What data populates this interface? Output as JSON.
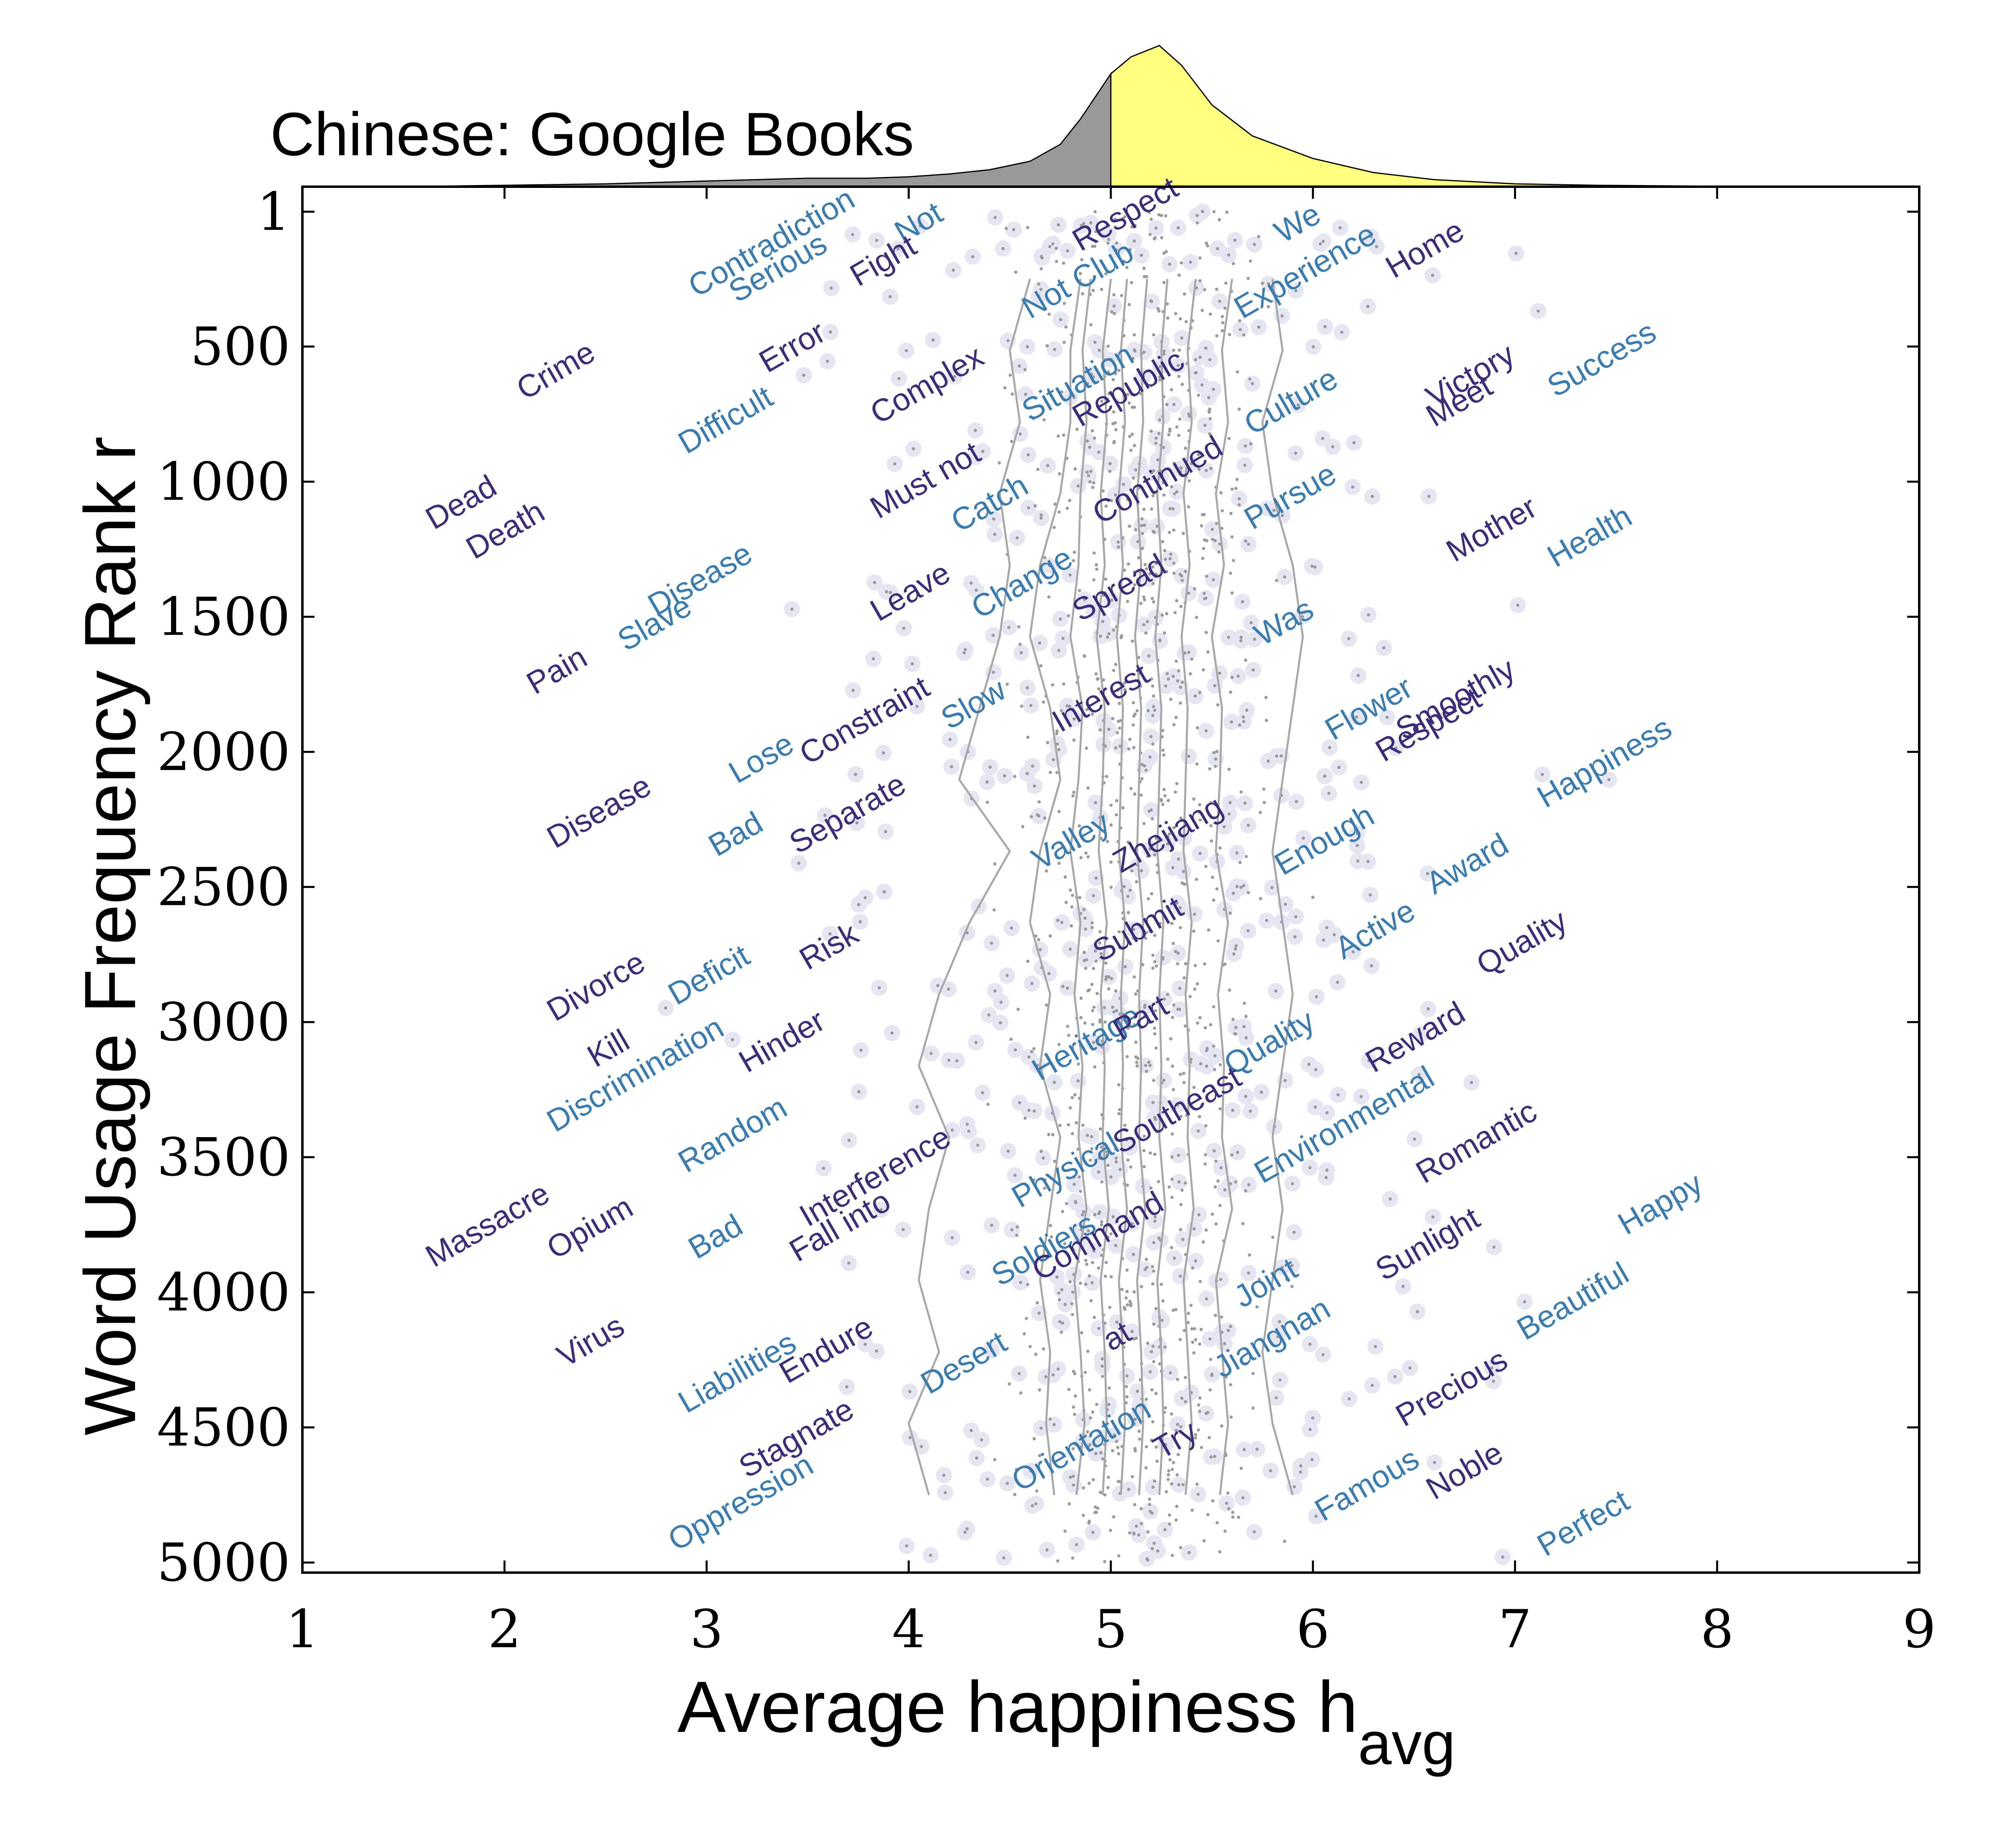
{
  "chart_data": {
    "type": "scatter",
    "title": "Chinese: Google Books",
    "xlabel": "Average happiness h",
    "xlabel_subscript": "avg",
    "ylabel": "Word Usage Frequency Rank r",
    "xlim": [
      1,
      9
    ],
    "ylim": [
      1,
      5000
    ],
    "y_inverted": true,
    "x_ticks": [
      1,
      2,
      3,
      4,
      5,
      6,
      7,
      8,
      9
    ],
    "y_ticks": [
      {
        "value": 1,
        "label": "1"
      },
      {
        "value": 500,
        "label": "500"
      },
      {
        "value": 1000,
        "label": "1000"
      },
      {
        "value": 1500,
        "label": "1500"
      },
      {
        "value": 2000,
        "label": "2000"
      },
      {
        "value": 2500,
        "label": "2500"
      },
      {
        "value": 3000,
        "label": "3000"
      },
      {
        "value": 3500,
        "label": "3500"
      },
      {
        "value": 4000,
        "label": "4000"
      },
      {
        "value": 4500,
        "label": "4500"
      },
      {
        "value": 5000,
        "label": "5000"
      }
    ],
    "grid": false,
    "colors": {
      "word_dark": "#3b2d7a",
      "word_light": "#3a7cb0",
      "point": "#9a9a9a",
      "point_halo": "#e6e6f3",
      "quantile_line": "#a8a8a8",
      "density_below": "#999999",
      "density_above": "#ffff80"
    },
    "density": {
      "split_at": 5,
      "x": [
        1.5,
        2.0,
        2.5,
        3.0,
        3.5,
        3.8,
        4.0,
        4.2,
        4.4,
        4.6,
        4.75,
        4.85,
        5.0,
        5.1,
        5.24,
        5.35,
        5.5,
        5.7,
        6.0,
        6.3,
        6.6,
        7.0,
        7.4,
        8.0,
        8.5
      ],
      "y": [
        0.0,
        0.01,
        0.02,
        0.04,
        0.06,
        0.06,
        0.07,
        0.09,
        0.12,
        0.18,
        0.3,
        0.48,
        0.8,
        0.92,
        1.0,
        0.86,
        0.58,
        0.36,
        0.2,
        0.1,
        0.05,
        0.02,
        0.01,
        0.003,
        0.0
      ]
    },
    "quantile_lines": [
      {
        "x": [
          4.6,
          4.5,
          4.55,
          4.45,
          4.5,
          4.45,
          4.35,
          4.25,
          4.5,
          4.3,
          4.15,
          4.05,
          4.2,
          4.1,
          4.05,
          4.15,
          4.0,
          4.1
        ]
      },
      {
        "x": [
          4.85,
          4.8,
          4.8,
          4.75,
          4.65,
          4.6,
          4.7,
          4.75,
          4.65,
          4.6,
          4.7,
          4.65,
          4.75,
          4.7,
          4.65,
          4.7,
          4.68,
          4.72
        ]
      },
      {
        "x": [
          4.9,
          4.86,
          4.88,
          4.85,
          4.84,
          4.8,
          4.86,
          4.84,
          4.8,
          4.85,
          4.82,
          4.86,
          4.84,
          4.88,
          4.82,
          4.85,
          4.87,
          4.83
        ]
      },
      {
        "x": [
          5.0,
          4.96,
          4.98,
          4.95,
          4.97,
          4.93,
          4.97,
          4.96,
          4.94,
          4.98,
          4.95,
          4.97,
          4.96,
          4.99,
          4.95,
          4.97,
          4.98,
          4.96
        ]
      },
      {
        "x": [
          5.08,
          5.05,
          5.07,
          5.04,
          5.06,
          5.03,
          5.06,
          5.05,
          5.04,
          5.07,
          5.05,
          5.06,
          5.05,
          5.08,
          5.04,
          5.06,
          5.07,
          5.05
        ]
      },
      {
        "x": [
          5.18,
          5.15,
          5.16,
          5.13,
          5.15,
          5.12,
          5.15,
          5.14,
          5.13,
          5.16,
          5.14,
          5.15,
          5.14,
          5.17,
          5.13,
          5.15,
          5.16,
          5.14
        ]
      },
      {
        "x": [
          5.28,
          5.25,
          5.26,
          5.23,
          5.25,
          5.22,
          5.25,
          5.24,
          5.23,
          5.26,
          5.24,
          5.25,
          5.24,
          5.27,
          5.23,
          5.25,
          5.26,
          5.24
        ]
      },
      {
        "x": [
          5.42,
          5.38,
          5.4,
          5.36,
          5.39,
          5.35,
          5.38,
          5.37,
          5.36,
          5.4,
          5.37,
          5.39,
          5.38,
          5.41,
          5.36,
          5.38,
          5.4,
          5.37
        ]
      },
      {
        "x": [
          5.6,
          5.55,
          5.58,
          5.52,
          5.56,
          5.5,
          5.55,
          5.54,
          5.52,
          5.58,
          5.53,
          5.56,
          5.55,
          5.6,
          5.52,
          5.55,
          5.58,
          5.54
        ]
      },
      {
        "x": [
          5.8,
          5.85,
          5.75,
          5.8,
          5.9,
          5.95,
          5.9,
          5.85,
          5.8,
          5.85,
          5.9,
          5.85,
          5.8,
          5.85,
          5.8,
          5.75,
          5.8,
          5.9
        ]
      }
    ],
    "words": [
      {
        "text": "Not",
        "h": 3.97,
        "r": 120,
        "tone": "light"
      },
      {
        "text": "Respect",
        "h": 4.85,
        "r": 150,
        "tone": "dark"
      },
      {
        "text": "We",
        "h": 5.85,
        "r": 120,
        "tone": "light"
      },
      {
        "text": "Contradiction",
        "h": 2.95,
        "r": 320,
        "tone": "light"
      },
      {
        "text": "Serious",
        "h": 3.15,
        "r": 340,
        "tone": "light"
      },
      {
        "text": "Fight",
        "h": 3.75,
        "r": 280,
        "tone": "dark"
      },
      {
        "text": "Home",
        "h": 6.4,
        "r": 250,
        "tone": "dark"
      },
      {
        "text": "Not Club",
        "h": 4.6,
        "r": 400,
        "tone": "light"
      },
      {
        "text": "Experience",
        "h": 5.65,
        "r": 400,
        "tone": "light"
      },
      {
        "text": "Crime",
        "h": 2.1,
        "r": 700,
        "tone": "dark"
      },
      {
        "text": "Error",
        "h": 3.3,
        "r": 600,
        "tone": "dark"
      },
      {
        "text": "Complex",
        "h": 3.85,
        "r": 790,
        "tone": "dark"
      },
      {
        "text": "Situation",
        "h": 4.6,
        "r": 780,
        "tone": "light"
      },
      {
        "text": "Republic",
        "h": 4.85,
        "r": 800,
        "tone": "dark"
      },
      {
        "text": "Victory",
        "h": 6.6,
        "r": 730,
        "tone": "dark"
      },
      {
        "text": "Meet",
        "h": 6.6,
        "r": 800,
        "tone": "dark"
      },
      {
        "text": "Success",
        "h": 7.2,
        "r": 690,
        "tone": "light"
      },
      {
        "text": "Difficult",
        "h": 2.9,
        "r": 900,
        "tone": "light"
      },
      {
        "text": "Culture",
        "h": 5.7,
        "r": 830,
        "tone": "light"
      },
      {
        "text": "Dead",
        "h": 1.65,
        "r": 1180,
        "tone": "dark"
      },
      {
        "text": "Death",
        "h": 1.85,
        "r": 1290,
        "tone": "dark"
      },
      {
        "text": "Must not",
        "h": 3.85,
        "r": 1140,
        "tone": "dark"
      },
      {
        "text": "Catch",
        "h": 4.25,
        "r": 1190,
        "tone": "light"
      },
      {
        "text": "Continued",
        "h": 4.95,
        "r": 1160,
        "tone": "dark"
      },
      {
        "text": "Pursue",
        "h": 5.7,
        "r": 1180,
        "tone": "light"
      },
      {
        "text": "Disease",
        "h": 2.75,
        "r": 1500,
        "tone": "light"
      },
      {
        "text": "Mother",
        "h": 6.7,
        "r": 1300,
        "tone": "dark"
      },
      {
        "text": "Health",
        "h": 7.2,
        "r": 1320,
        "tone": "light"
      },
      {
        "text": "Leave",
        "h": 3.85,
        "r": 1520,
        "tone": "dark"
      },
      {
        "text": "Change",
        "h": 4.35,
        "r": 1510,
        "tone": "light"
      },
      {
        "text": "Spread",
        "h": 4.85,
        "r": 1520,
        "tone": "dark"
      },
      {
        "text": "Was",
        "h": 5.75,
        "r": 1610,
        "tone": "light"
      },
      {
        "text": "Pain",
        "h": 2.15,
        "r": 1790,
        "tone": "dark"
      },
      {
        "text": "Slave",
        "h": 2.6,
        "r": 1630,
        "tone": "light"
      },
      {
        "text": "Constraint",
        "h": 3.5,
        "r": 2050,
        "tone": "dark"
      },
      {
        "text": "Slow",
        "h": 4.2,
        "r": 1920,
        "tone": "light"
      },
      {
        "text": "Interest",
        "h": 4.75,
        "r": 1930,
        "tone": "dark"
      },
      {
        "text": "Flower",
        "h": 6.1,
        "r": 1960,
        "tone": "light"
      },
      {
        "text": "Smoothly",
        "h": 6.45,
        "r": 1960,
        "tone": "dark"
      },
      {
        "text": "Respect",
        "h": 6.35,
        "r": 2040,
        "tone": "dark"
      },
      {
        "text": "Disease",
        "h": 2.25,
        "r": 2360,
        "tone": "dark"
      },
      {
        "text": "Lose",
        "h": 3.15,
        "r": 2120,
        "tone": "light"
      },
      {
        "text": "Bad",
        "h": 3.05,
        "r": 2390,
        "tone": "light"
      },
      {
        "text": "Separate",
        "h": 3.45,
        "r": 2380,
        "tone": "dark"
      },
      {
        "text": "Valley",
        "h": 4.65,
        "r": 2440,
        "tone": "light"
      },
      {
        "text": "Zhejiang",
        "h": 5.05,
        "r": 2450,
        "tone": "dark"
      },
      {
        "text": "Enough",
        "h": 5.85,
        "r": 2460,
        "tone": "light"
      },
      {
        "text": "Happiness",
        "h": 7.15,
        "r": 2210,
        "tone": "light"
      },
      {
        "text": "Award",
        "h": 6.6,
        "r": 2530,
        "tone": "light"
      },
      {
        "text": "Active",
        "h": 6.15,
        "r": 2770,
        "tone": "light"
      },
      {
        "text": "Submit",
        "h": 4.95,
        "r": 2780,
        "tone": "dark"
      },
      {
        "text": "Divorce",
        "h": 2.25,
        "r": 3000,
        "tone": "dark"
      },
      {
        "text": "Deficit",
        "h": 2.85,
        "r": 2940,
        "tone": "light"
      },
      {
        "text": "Risk",
        "h": 3.5,
        "r": 2810,
        "tone": "dark"
      },
      {
        "text": "Quality",
        "h": 6.85,
        "r": 2830,
        "tone": "dark"
      },
      {
        "text": "Kill",
        "h": 2.45,
        "r": 3170,
        "tone": "dark"
      },
      {
        "text": "Discrimination",
        "h": 2.25,
        "r": 3410,
        "tone": "light"
      },
      {
        "text": "Hinder",
        "h": 3.2,
        "r": 3190,
        "tone": "dark"
      },
      {
        "text": "Heritage",
        "h": 4.65,
        "r": 3220,
        "tone": "light"
      },
      {
        "text": "Part",
        "h": 5.05,
        "r": 3070,
        "tone": "dark"
      },
      {
        "text": "Quality",
        "h": 5.6,
        "r": 3200,
        "tone": "light"
      },
      {
        "text": "Reward",
        "h": 6.3,
        "r": 3190,
        "tone": "dark"
      },
      {
        "text": "Random",
        "h": 2.9,
        "r": 3560,
        "tone": "light"
      },
      {
        "text": "Interference",
        "h": 3.5,
        "r": 3760,
        "tone": "dark"
      },
      {
        "text": "Physical",
        "h": 4.55,
        "r": 3690,
        "tone": "light"
      },
      {
        "text": "Southeast",
        "h": 5.05,
        "r": 3490,
        "tone": "dark"
      },
      {
        "text": "Environmental",
        "h": 5.75,
        "r": 3600,
        "tone": "light"
      },
      {
        "text": "Romantic",
        "h": 6.55,
        "r": 3600,
        "tone": "dark"
      },
      {
        "text": "Massacre",
        "h": 1.65,
        "r": 3910,
        "tone": "dark"
      },
      {
        "text": "Opium",
        "h": 2.25,
        "r": 3880,
        "tone": "dark"
      },
      {
        "text": "Bad",
        "h": 2.95,
        "r": 3880,
        "tone": "light"
      },
      {
        "text": "Fall into",
        "h": 3.45,
        "r": 3890,
        "tone": "dark"
      },
      {
        "text": "Soldiers",
        "h": 4.45,
        "r": 3980,
        "tone": "light"
      },
      {
        "text": "Command",
        "h": 4.65,
        "r": 3960,
        "tone": "dark"
      },
      {
        "text": "Sunlight",
        "h": 6.35,
        "r": 3960,
        "tone": "dark"
      },
      {
        "text": "Happy",
        "h": 7.55,
        "r": 3790,
        "tone": "light"
      },
      {
        "text": "Joint",
        "h": 5.65,
        "r": 4060,
        "tone": "light"
      },
      {
        "text": "Virus",
        "h": 2.3,
        "r": 4280,
        "tone": "dark"
      },
      {
        "text": "Liabilities",
        "h": 2.9,
        "r": 4450,
        "tone": "light"
      },
      {
        "text": "Endure",
        "h": 3.4,
        "r": 4340,
        "tone": "dark"
      },
      {
        "text": "Desert",
        "h": 4.1,
        "r": 4380,
        "tone": "light"
      },
      {
        "text": "at",
        "h": 5.0,
        "r": 4220,
        "tone": "dark"
      },
      {
        "text": "Jiangnan",
        "h": 5.55,
        "r": 4320,
        "tone": "light"
      },
      {
        "text": "Beautiful",
        "h": 7.05,
        "r": 4180,
        "tone": "light"
      },
      {
        "text": "Precious",
        "h": 6.45,
        "r": 4500,
        "tone": "dark"
      },
      {
        "text": "Stagnate",
        "h": 3.2,
        "r": 4690,
        "tone": "dark"
      },
      {
        "text": "Oppression",
        "h": 2.85,
        "r": 4960,
        "tone": "light"
      },
      {
        "text": "Orientation",
        "h": 4.55,
        "r": 4740,
        "tone": "light"
      },
      {
        "text": "Try",
        "h": 5.25,
        "r": 4620,
        "tone": "dark"
      },
      {
        "text": "Famous",
        "h": 6.05,
        "r": 4850,
        "tone": "light"
      },
      {
        "text": "Noble",
        "h": 6.6,
        "r": 4770,
        "tone": "dark"
      },
      {
        "text": "Perfect",
        "h": 7.15,
        "r": 4980,
        "tone": "light"
      }
    ]
  }
}
